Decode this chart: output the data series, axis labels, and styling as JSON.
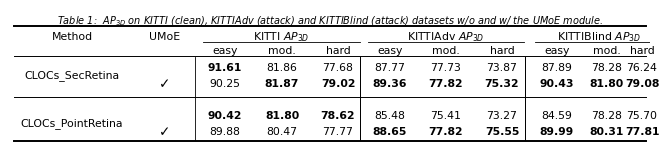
{
  "caption": "Table 1:  $AP_{3D}$ on KITTI (clean), KITTIAdv (attack) and KITTIBlind (attack) datasets w/o and w/ the UMoE module.",
  "rows": [
    {
      "method": "CLOCs_SecRetina",
      "umoe": false,
      "vals": [
        "91.61",
        "81.86",
        "77.68",
        "87.77",
        "77.73",
        "73.87",
        "87.89",
        "78.28",
        "76.24"
      ],
      "bolds": [
        true,
        false,
        false,
        false,
        false,
        false,
        false,
        false,
        false
      ]
    },
    {
      "method": "CLOCs_SecRetina",
      "umoe": true,
      "vals": [
        "90.25",
        "81.87",
        "79.02",
        "89.36",
        "77.82",
        "75.32",
        "90.43",
        "81.80",
        "79.08"
      ],
      "bolds": [
        false,
        true,
        true,
        true,
        true,
        true,
        true,
        true,
        true
      ]
    },
    {
      "method": "CLOCs_PointRetina",
      "umoe": false,
      "vals": [
        "90.42",
        "81.80",
        "78.62",
        "85.48",
        "75.41",
        "73.27",
        "84.59",
        "78.28",
        "75.70"
      ],
      "bolds": [
        true,
        true,
        true,
        false,
        false,
        false,
        false,
        false,
        false
      ]
    },
    {
      "method": "CLOCs_PointRetina",
      "umoe": true,
      "vals": [
        "89.88",
        "80.47",
        "77.77",
        "88.65",
        "77.82",
        "75.55",
        "89.99",
        "80.31",
        "77.81"
      ],
      "bolds": [
        false,
        false,
        false,
        true,
        true,
        true,
        true,
        true,
        true
      ]
    }
  ],
  "bg_color": "#ffffff",
  "text_color": "#000000",
  "fontsize": 7.8,
  "caption_fontsize": 7.0,
  "header_fontsize": 7.8
}
